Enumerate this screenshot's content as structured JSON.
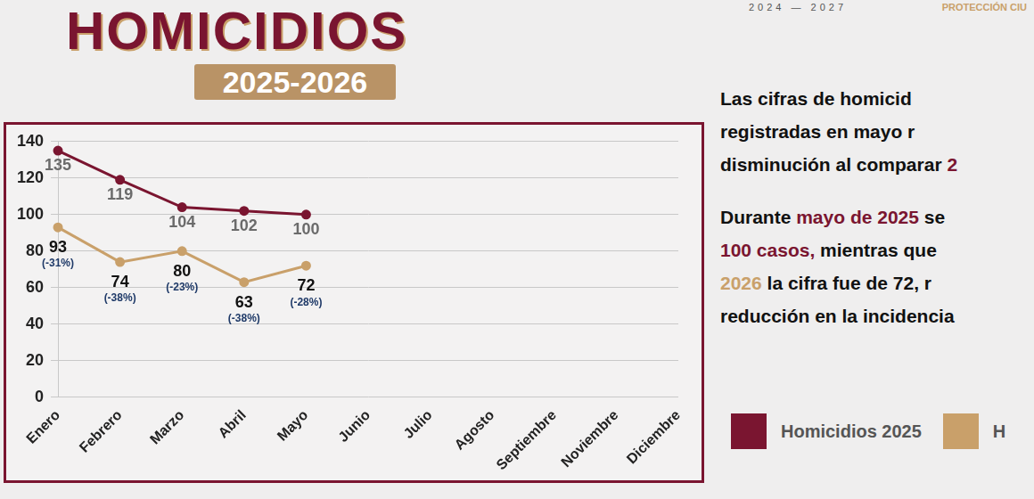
{
  "header": {
    "period": "2024 — 2027",
    "agency": "PROTECCIÓN CIU"
  },
  "chart_data": {
    "type": "line",
    "title": "HOMICIDIOS",
    "subtitle": "2025-2026",
    "categories": [
      "Enero",
      "Febrero",
      "Marzo",
      "Abril",
      "Mayo",
      "Junio",
      "Julio",
      "Agosto",
      "Septiembre",
      "Noviembre",
      "Diciembre"
    ],
    "series": [
      {
        "name": "Homicidios 2025",
        "color": "#7a1530",
        "values": [
          135,
          119,
          104,
          102,
          100,
          null,
          null,
          null,
          null,
          null,
          null
        ]
      },
      {
        "name": "H",
        "color": "#c9a06a",
        "values": [
          93,
          74,
          80,
          63,
          72,
          null,
          null,
          null,
          null,
          null,
          null
        ],
        "change_labels": [
          "(-31%)",
          "(-38%)",
          "(-23%)",
          "(-38%)",
          "(-28%)",
          null,
          null,
          null,
          null,
          null,
          null
        ]
      }
    ],
    "ylim": [
      0,
      140
    ],
    "yticks": [
      0,
      20,
      40,
      60,
      80,
      100,
      120,
      140
    ],
    "grid": true,
    "data_labels": true,
    "marker": "circle",
    "legend": "right"
  },
  "text": [
    [
      {
        "text": "Las cifras de homicid"
      }
    ],
    [
      {
        "text": "registradas en mayo r"
      }
    ],
    [
      {
        "text": "disminución al comparar "
      },
      {
        "text": "2",
        "color": "#7a1530"
      }
    ],
    [],
    [
      {
        "text": "Durante "
      },
      {
        "text": "mayo de 2025",
        "color": "#7a1530"
      },
      {
        "text": " se"
      }
    ],
    [
      {
        "text": "100 casos,",
        "color": "#7a1530"
      },
      {
        "text": " mientras que"
      }
    ],
    [
      {
        "text": "2026",
        "color": "#c9a06a"
      },
      {
        "text": " la cifra fue de 72, r"
      }
    ],
    [
      {
        "text": "reducción en la incidencia"
      }
    ]
  ]
}
